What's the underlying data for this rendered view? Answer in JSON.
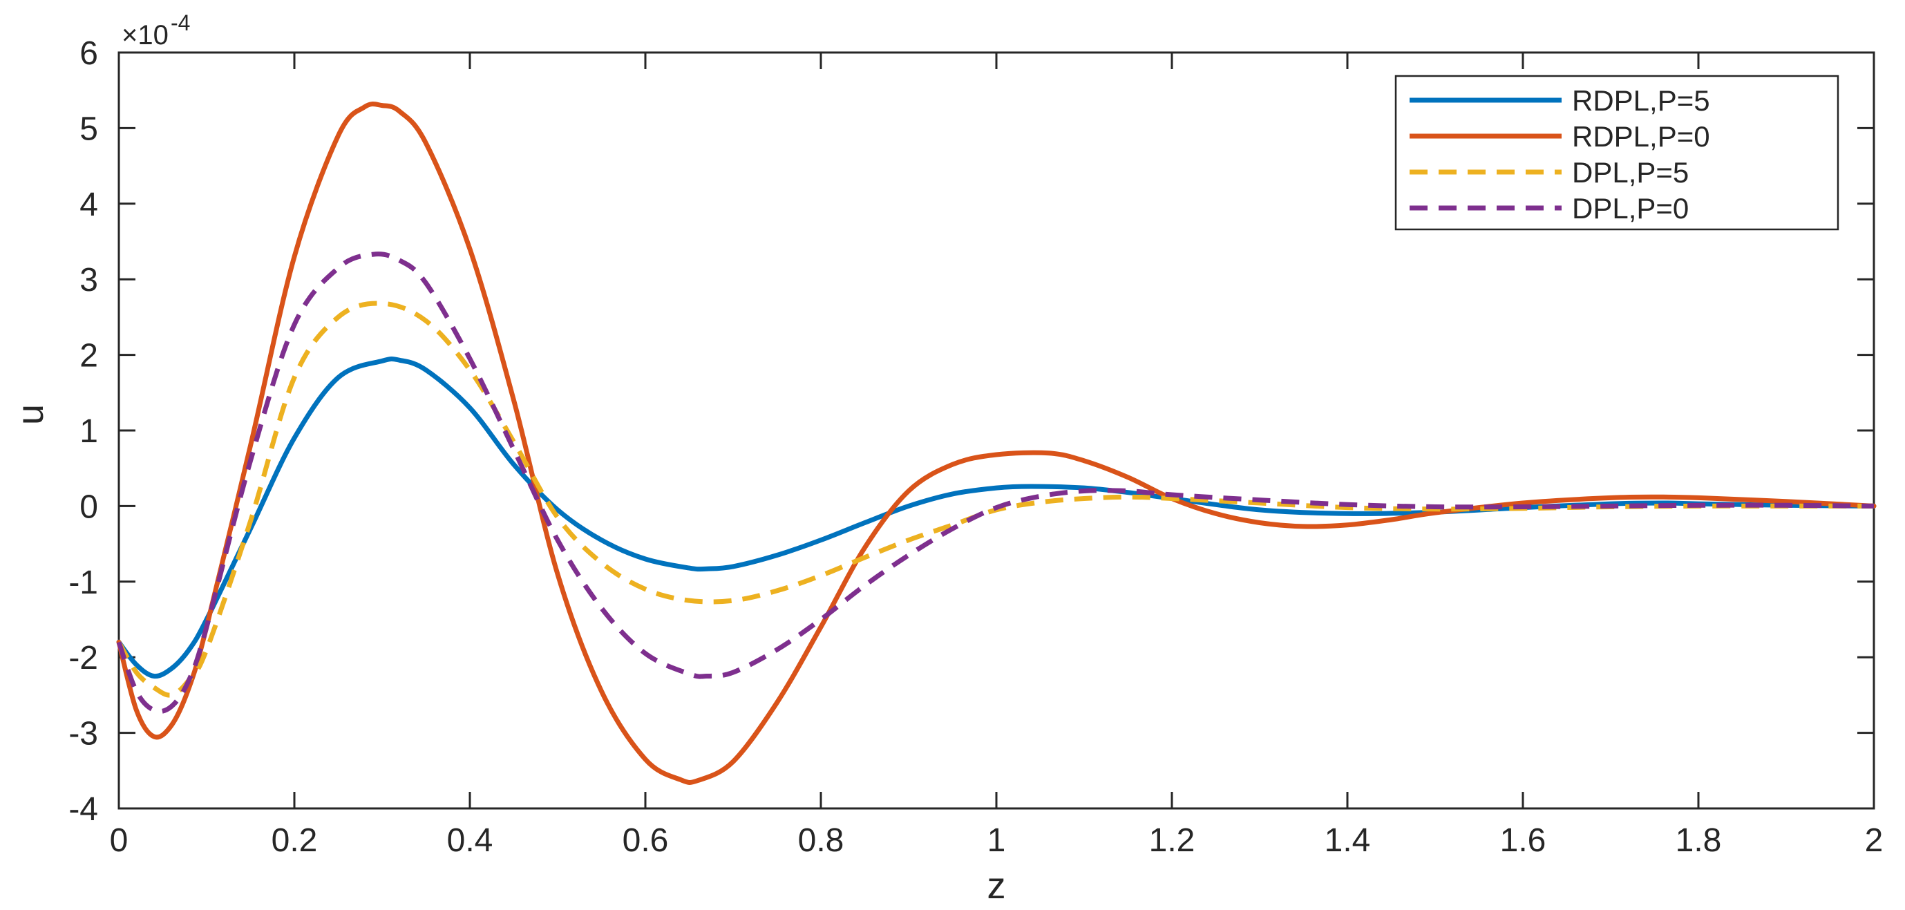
{
  "chart_data": {
    "type": "line",
    "title": "",
    "xlabel": "z",
    "ylabel": "u",
    "y_scale_exponent_label": "×10",
    "y_scale_exponent_power": "-4",
    "xlim": [
      0,
      2
    ],
    "ylim": [
      -4,
      6
    ],
    "x_ticks": [
      0,
      0.2,
      0.4,
      0.6,
      0.8,
      1,
      1.2,
      1.4,
      1.6,
      1.8,
      2
    ],
    "x_tick_labels": [
      "0",
      "0.2",
      "0.4",
      "0.6",
      "0.8",
      "1",
      "1.2",
      "1.4",
      "1.6",
      "1.8",
      "2"
    ],
    "y_ticks": [
      -4,
      -3,
      -2,
      -1,
      0,
      1,
      2,
      3,
      4,
      5,
      6
    ],
    "y_tick_labels": [
      "-4",
      "-3",
      "-2",
      "-1",
      "0",
      "1",
      "2",
      "3",
      "4",
      "5",
      "6"
    ],
    "grid": false,
    "legend_position": "top-right",
    "series": [
      {
        "name": "RDPL,P=5",
        "color": "#0072BD",
        "style": "solid",
        "x": [
          0,
          0.02,
          0.04,
          0.06,
          0.08,
          0.1,
          0.15,
          0.2,
          0.25,
          0.3,
          0.32,
          0.35,
          0.4,
          0.45,
          0.5,
          0.55,
          0.6,
          0.65,
          0.67,
          0.7,
          0.75,
          0.8,
          0.85,
          0.9,
          0.95,
          1.0,
          1.04,
          1.1,
          1.15,
          1.2,
          1.3,
          1.4,
          1.5,
          1.6,
          1.7,
          1.76,
          1.8,
          1.9,
          2.0
        ],
        "y": [
          -1.8,
          -2.1,
          -2.25,
          -2.15,
          -1.9,
          -1.5,
          -0.3,
          0.9,
          1.7,
          1.92,
          1.93,
          1.8,
          1.3,
          0.55,
          -0.05,
          -0.45,
          -0.7,
          -0.82,
          -0.83,
          -0.8,
          -0.65,
          -0.45,
          -0.22,
          0.0,
          0.16,
          0.24,
          0.26,
          0.24,
          0.18,
          0.1,
          -0.05,
          -0.1,
          -0.08,
          -0.02,
          0.03,
          0.04,
          0.03,
          0.01,
          0.0
        ]
      },
      {
        "name": "RDPL,P=0",
        "color": "#D95319",
        "style": "solid",
        "x": [
          0,
          0.02,
          0.04,
          0.06,
          0.08,
          0.1,
          0.15,
          0.2,
          0.25,
          0.28,
          0.3,
          0.32,
          0.35,
          0.4,
          0.45,
          0.5,
          0.55,
          0.6,
          0.64,
          0.66,
          0.7,
          0.75,
          0.8,
          0.85,
          0.9,
          0.95,
          1.0,
          1.06,
          1.1,
          1.15,
          1.2,
          1.25,
          1.3,
          1.35,
          1.4,
          1.45,
          1.5,
          1.6,
          1.7,
          1.76,
          1.8,
          1.9,
          2.0
        ],
        "y": [
          -1.8,
          -2.7,
          -3.05,
          -2.9,
          -2.4,
          -1.6,
          0.8,
          3.3,
          4.9,
          5.28,
          5.3,
          5.22,
          4.8,
          3.4,
          1.4,
          -0.9,
          -2.45,
          -3.35,
          -3.62,
          -3.63,
          -3.38,
          -2.6,
          -1.6,
          -0.55,
          0.2,
          0.55,
          0.68,
          0.7,
          0.6,
          0.38,
          0.1,
          -0.1,
          -0.22,
          -0.27,
          -0.25,
          -0.18,
          -0.09,
          0.04,
          0.11,
          0.12,
          0.11,
          0.06,
          0.0
        ]
      },
      {
        "name": "DPL,P=5",
        "color": "#EDB120",
        "style": "dashed",
        "x": [
          0,
          0.02,
          0.04,
          0.06,
          0.08,
          0.1,
          0.15,
          0.2,
          0.25,
          0.3,
          0.35,
          0.4,
          0.45,
          0.5,
          0.55,
          0.6,
          0.65,
          0.7,
          0.75,
          0.8,
          0.85,
          0.9,
          0.95,
          1.0,
          1.05,
          1.1,
          1.15,
          1.2,
          1.3,
          1.4,
          1.5,
          1.6,
          1.7,
          1.8,
          1.9,
          2.0
        ],
        "y": [
          -1.8,
          -2.2,
          -2.4,
          -2.5,
          -2.3,
          -1.9,
          -0.2,
          1.7,
          2.5,
          2.68,
          2.45,
          1.8,
          0.85,
          -0.15,
          -0.75,
          -1.1,
          -1.25,
          -1.25,
          -1.12,
          -0.92,
          -0.68,
          -0.45,
          -0.25,
          -0.05,
          0.05,
          0.1,
          0.12,
          0.1,
          0.04,
          -0.02,
          -0.04,
          -0.03,
          -0.01,
          0.0,
          0.0,
          0.0
        ]
      },
      {
        "name": "DPL,P=0",
        "color": "#7E2F8E",
        "style": "dashed",
        "x": [
          0,
          0.02,
          0.04,
          0.06,
          0.08,
          0.1,
          0.15,
          0.2,
          0.25,
          0.29,
          0.32,
          0.35,
          0.4,
          0.45,
          0.5,
          0.55,
          0.6,
          0.65,
          0.67,
          0.7,
          0.75,
          0.8,
          0.85,
          0.9,
          0.95,
          1.0,
          1.05,
          1.1,
          1.15,
          1.2,
          1.3,
          1.4,
          1.5,
          1.6,
          1.7,
          1.8,
          1.9,
          2.0
        ],
        "y": [
          -1.8,
          -2.45,
          -2.7,
          -2.65,
          -2.3,
          -1.6,
          0.6,
          2.4,
          3.15,
          3.33,
          3.25,
          2.95,
          1.95,
          0.75,
          -0.45,
          -1.35,
          -1.95,
          -2.22,
          -2.25,
          -2.2,
          -1.9,
          -1.5,
          -1.05,
          -0.65,
          -0.3,
          -0.02,
          0.13,
          0.2,
          0.2,
          0.15,
          0.08,
          0.02,
          -0.01,
          -0.01,
          0.0,
          0.01,
          0.01,
          0.0
        ]
      }
    ]
  }
}
